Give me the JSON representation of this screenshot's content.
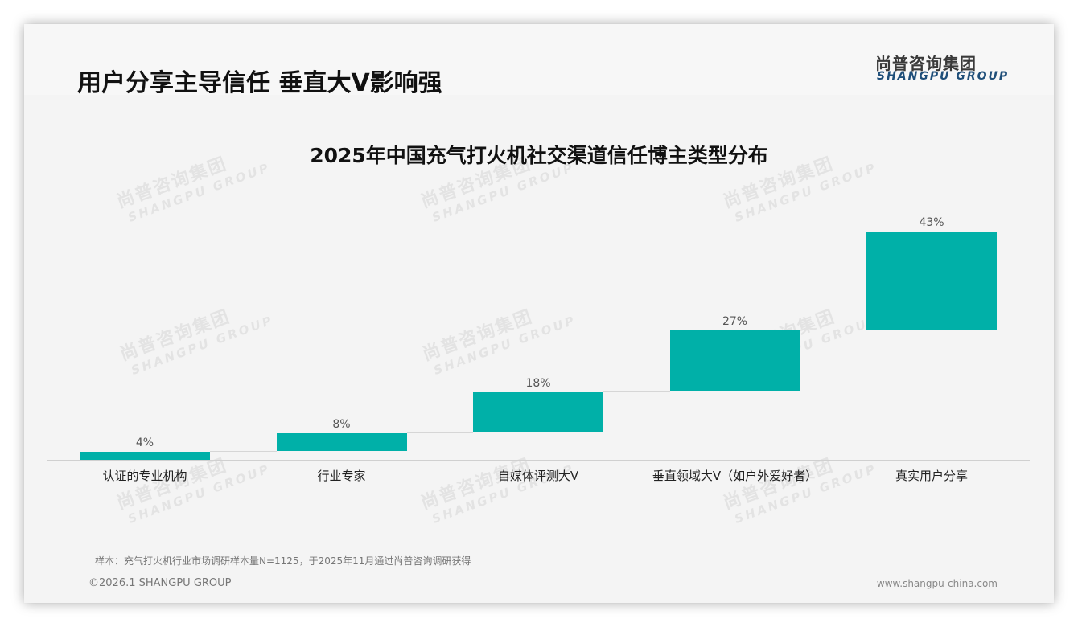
{
  "slide": {
    "title": "用户分享主导信任 垂直大V影响强",
    "logo": {
      "cn": "尚普咨询集团",
      "en": "SHANGPU GROUP"
    },
    "watermark": {
      "cn": "尚普咨询集团",
      "en": "SHANGPU GROUP"
    },
    "footnote": "样本：充气打火机行业市场调研样本量N=1125，于2025年11月通过尚普咨询调研获得",
    "copyright": "©2026.1 SHANGPU GROUP",
    "website": "www.shangpu-china.com",
    "colors": {
      "bar": "#00b0a8",
      "logo_en": "#1e4e79",
      "background": "#f4f4f4"
    }
  },
  "chart_data": {
    "type": "bar",
    "subtype": "waterfall",
    "title": "2025年中国充气打火机社交渠道信任博主类型分布",
    "categories": [
      "认证的专业机构",
      "行业专家",
      "自媒体评测大V",
      "垂直领域大V（如户外爱好者）",
      "真实用户分享"
    ],
    "values": [
      4,
      8,
      18,
      27,
      43
    ],
    "value_labels": [
      "4%",
      "8%",
      "18%",
      "27%",
      "43%"
    ],
    "unit": "%",
    "xlabel": "",
    "ylabel": "",
    "grid": false,
    "legend": null,
    "color": "#00b0a8"
  }
}
